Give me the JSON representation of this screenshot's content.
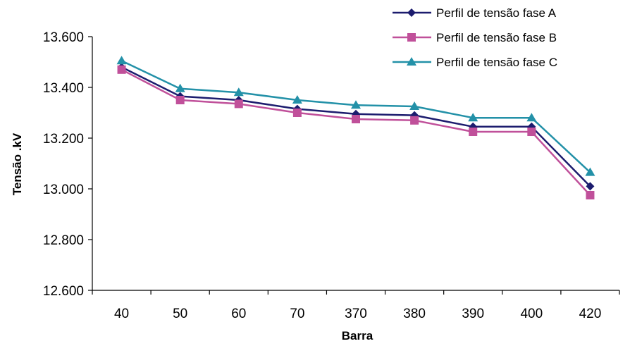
{
  "chart_data": {
    "type": "line",
    "title": "",
    "xlabel": "Barra",
    "ylabel": "Tensão .kV",
    "categories": [
      "40",
      "50",
      "60",
      "70",
      "370",
      "380",
      "390",
      "400",
      "420"
    ],
    "ylim": [
      12600,
      13600
    ],
    "ystep": 200,
    "ytick_labels": [
      "12.600",
      "12.800",
      "13.000",
      "13.200",
      "13.400",
      "13.600"
    ],
    "grid": false,
    "legend_position": "top-right",
    "series": [
      {
        "name": "Perfil de tensão fase A",
        "color": "#1c1c6e",
        "marker": "diamond",
        "values": [
          13480,
          13365,
          13350,
          13315,
          13295,
          13290,
          13245,
          13245,
          13010
        ]
      },
      {
        "name": "Perfil de tensão fase B",
        "color": "#c0509a",
        "marker": "square",
        "values": [
          13470,
          13350,
          13335,
          13300,
          13275,
          13270,
          13225,
          13225,
          12975
        ]
      },
      {
        "name": "Perfil de tensão fase C",
        "color": "#2391a8",
        "marker": "triangle",
        "values": [
          13505,
          13395,
          13380,
          13350,
          13330,
          13325,
          13280,
          13280,
          13065
        ]
      }
    ]
  }
}
